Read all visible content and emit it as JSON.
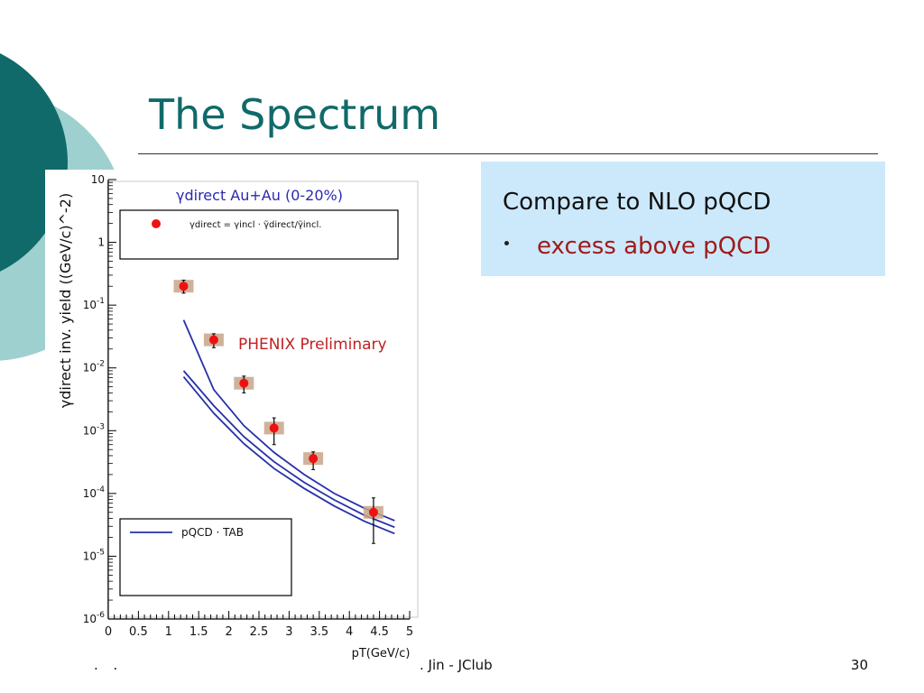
{
  "slide": {
    "title": "The Spectrum",
    "callout_heading": "Compare to NLO pQCD",
    "callout_bullet": "excess above pQCD",
    "footer": ". Jin - JClub",
    "footer_left": ". .",
    "page_number": "30"
  },
  "colors": {
    "teal": "#106a6a",
    "light_teal": "#9fd0d0",
    "callout_bg": "#cce9fb",
    "bullet_text": "#a11a1a",
    "data_point": "#ee1111",
    "syst_box": "#c8a48a",
    "curve": "#2630a8"
  },
  "chart_data": {
    "type": "scatter",
    "title": "γdirect Au+Au (0-20%)",
    "ylabel": "γdirect inv. yield ((GeV/c)^-2)",
    "xlabel": "pT(GeV/c)",
    "annotation": "PHENIX Preliminary",
    "legend_top": "γdirect = γincl · γ̃direct/γ̃incl.",
    "legend_bottom": "pQCD · TAB",
    "xlim": [
      0,
      5
    ],
    "ylim": [
      1e-06,
      10
    ],
    "yscale": "log",
    "x_ticks": [
      "0",
      "0.5",
      "1",
      "1.5",
      "2",
      "2.5",
      "3",
      "3.5",
      "4",
      "4.5",
      "5"
    ],
    "y_ticks": [
      {
        "base": "10",
        "exp": ""
      },
      {
        "base": "1",
        "exp": ""
      },
      {
        "base": "10",
        "exp": "-1"
      },
      {
        "base": "10",
        "exp": "-2"
      },
      {
        "base": "10",
        "exp": "-3"
      },
      {
        "base": "10",
        "exp": "-4"
      },
      {
        "base": "10",
        "exp": "-5"
      },
      {
        "base": "10",
        "exp": "-6"
      }
    ],
    "points": [
      {
        "x": 1.25,
        "y": 0.2,
        "err_lo": 0.045,
        "err_hi": 0.05
      },
      {
        "x": 1.75,
        "y": 0.028,
        "err_lo": 0.007,
        "err_hi": 0.007
      },
      {
        "x": 2.25,
        "y": 0.0057,
        "err_lo": 0.0017,
        "err_hi": 0.0017
      },
      {
        "x": 2.75,
        "y": 0.0011,
        "err_lo": 0.0005,
        "err_hi": 0.0005
      },
      {
        "x": 3.4,
        "y": 0.00036,
        "err_lo": 0.00012,
        "err_hi": 0.0001
      },
      {
        "x": 4.4,
        "y": 5e-05,
        "err_lo": 3.4e-05,
        "err_hi": 3.5e-05
      }
    ],
    "series": [
      {
        "x": [
          1.25,
          1.75,
          2.25,
          2.75,
          3.25,
          3.75,
          4.25,
          4.75
        ],
        "y": [
          0.058,
          0.0045,
          0.0012,
          0.00045,
          0.0002,
          0.0001,
          5.8e-05,
          3.7e-05
        ]
      },
      {
        "x": [
          1.25,
          1.75,
          2.25,
          2.75,
          3.25,
          3.75,
          4.25,
          4.75
        ],
        "y": [
          0.009,
          0.0025,
          0.0008,
          0.00032,
          0.00015,
          7.9e-05,
          4.5e-05,
          2.9e-05
        ]
      },
      {
        "x": [
          1.25,
          1.75,
          2.25,
          2.75,
          3.25,
          3.75,
          4.25,
          4.75
        ],
        "y": [
          0.0072,
          0.0019,
          0.00062,
          0.00025,
          0.00012,
          6.3e-05,
          3.6e-05,
          2.3e-05
        ]
      }
    ]
  }
}
